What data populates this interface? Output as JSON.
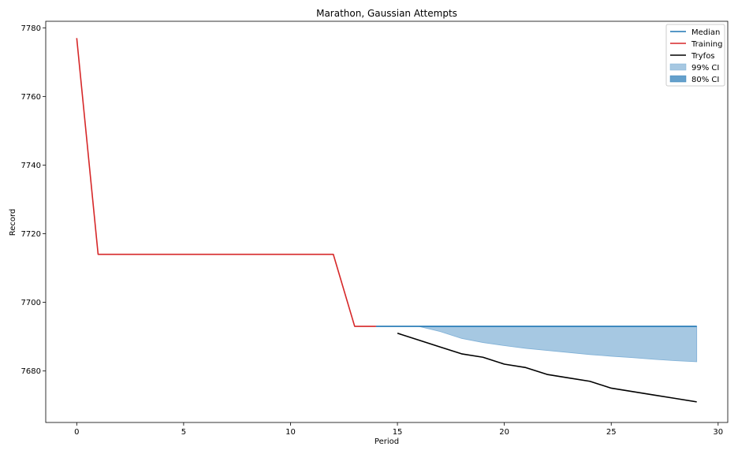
{
  "chart_data": {
    "type": "line",
    "title": "Marathon, Gaussian Attempts",
    "xlabel": "Period",
    "ylabel": "Record",
    "xlim": [
      -1.45,
      30.45
    ],
    "ylim": [
      7665.0,
      7781.9
    ],
    "xticks": [
      0,
      5,
      10,
      15,
      20,
      25,
      30
    ],
    "yticks": [
      7680,
      7700,
      7720,
      7740,
      7760,
      7780
    ],
    "grid": false,
    "legend_position": "top-right",
    "colors": {
      "median": "#1f77b4",
      "training": "#d62728",
      "tryfos": "#000000",
      "ci99": "#a6c8e2",
      "ci80": "#64a0cc"
    },
    "legend": [
      "Median",
      "Training",
      "Tryfos",
      "99% CI",
      "80% CI"
    ],
    "series": [
      {
        "name": "Training",
        "x": [
          0,
          1,
          2,
          3,
          4,
          5,
          6,
          7,
          8,
          9,
          10,
          11,
          12,
          13,
          14
        ],
        "values": [
          7777,
          7714,
          7714,
          7714,
          7714,
          7714,
          7714,
          7714,
          7714,
          7714,
          7714,
          7714,
          7714,
          7693,
          7693
        ]
      },
      {
        "name": "Median",
        "x": [
          14,
          15,
          16,
          17,
          18,
          19,
          20,
          21,
          22,
          23,
          24,
          25,
          26,
          27,
          28,
          29
        ],
        "values": [
          7693,
          7693,
          7693,
          7693,
          7693,
          7693,
          7693,
          7693,
          7693,
          7693,
          7693,
          7693,
          7693,
          7693,
          7693,
          7693
        ]
      },
      {
        "name": "Tryfos",
        "x": [
          15,
          16,
          17,
          18,
          19,
          20,
          21,
          22,
          23,
          24,
          25,
          26,
          27,
          28,
          29
        ],
        "values": [
          7691,
          7689,
          7687,
          7685,
          7684,
          7682,
          7681,
          7679,
          7678,
          7677,
          7675,
          7674,
          7673,
          7672,
          7671
        ]
      }
    ],
    "bands": [
      {
        "name": "99% CI",
        "x": [
          14,
          15,
          16,
          17,
          18,
          19,
          20,
          21,
          22,
          23,
          24,
          25,
          26,
          27,
          28,
          29
        ],
        "upper": [
          7693,
          7693,
          7693,
          7693,
          7693,
          7693,
          7693,
          7693,
          7693,
          7693,
          7693,
          7693,
          7693,
          7693,
          7693,
          7693
        ],
        "lower": [
          7693,
          7693,
          7693,
          7691.5,
          7689.5,
          7688.3,
          7687.4,
          7686.6,
          7686,
          7685.4,
          7684.8,
          7684.3,
          7683.9,
          7683.4,
          7683,
          7682.7
        ]
      },
      {
        "name": "80% CI",
        "x": [
          14,
          15,
          16,
          17,
          18,
          19,
          20,
          21,
          22,
          23,
          24,
          25,
          26,
          27,
          28,
          29
        ],
        "upper": [
          7693,
          7693,
          7693,
          7693,
          7693,
          7693,
          7693,
          7693,
          7693,
          7693,
          7693,
          7693,
          7693,
          7693,
          7693,
          7693
        ],
        "lower": [
          7693,
          7693,
          7693,
          7693,
          7693,
          7693,
          7693,
          7693,
          7693,
          7693,
          7693,
          7693,
          7693,
          7693,
          7693,
          7693
        ]
      }
    ]
  }
}
